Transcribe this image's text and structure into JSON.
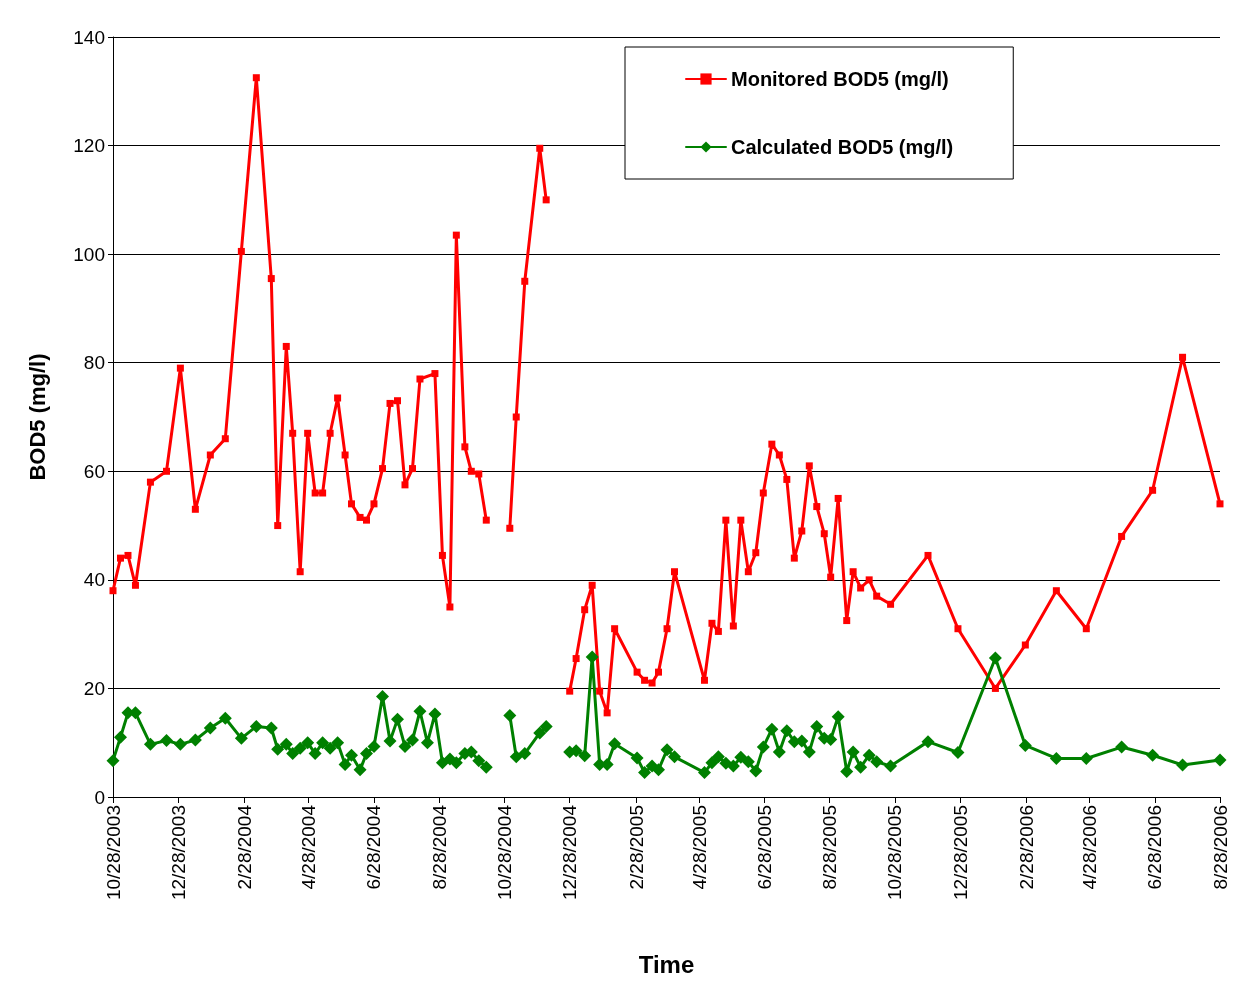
{
  "chart_data": {
    "type": "line",
    "xlabel": "Time",
    "ylabel": "BOD5 (mg/l)",
    "xlim": [
      "2003-10-28",
      "2006-08-28"
    ],
    "xticks": [
      {
        "value": "2003-10-28",
        "label": "10/28/2003"
      },
      {
        "value": "2003-12-28",
        "label": "12/28/2003"
      },
      {
        "value": "2004-02-28",
        "label": "2/28/2004"
      },
      {
        "value": "2004-04-28",
        "label": "4/28/2004"
      },
      {
        "value": "2004-06-28",
        "label": "6/28/2004"
      },
      {
        "value": "2004-08-28",
        "label": "8/28/2004"
      },
      {
        "value": "2004-10-28",
        "label": "10/28/2004"
      },
      {
        "value": "2004-12-28",
        "label": "12/28/2004"
      },
      {
        "value": "2005-02-28",
        "label": "2/28/2005"
      },
      {
        "value": "2005-04-28",
        "label": "4/28/2005"
      },
      {
        "value": "2005-06-28",
        "label": "6/28/2005"
      },
      {
        "value": "2005-08-28",
        "label": "8/28/2005"
      },
      {
        "value": "2005-10-28",
        "label": "10/28/2005"
      },
      {
        "value": "2005-12-28",
        "label": "12/28/2005"
      },
      {
        "value": "2006-02-28",
        "label": "2/28/2006"
      },
      {
        "value": "2006-04-28",
        "label": "4/28/2006"
      },
      {
        "value": "2006-06-28",
        "label": "6/28/2006"
      },
      {
        "value": "2006-08-28",
        "label": "8/28/2006"
      }
    ],
    "ylim": [
      0,
      140
    ],
    "yticks": [
      0,
      20,
      40,
      60,
      80,
      100,
      120,
      140
    ],
    "grid": "y",
    "legend": "top right",
    "line_style": "solid",
    "series": [
      {
        "name": "Monitored BOD5 (mg/l)",
        "color": "#ff0000",
        "marker": "square",
        "x": [
          "2003-10-28",
          "2003-11-04",
          "2003-11-11",
          "2003-11-18",
          "2003-12-02",
          "2003-12-17",
          "2003-12-30",
          "2004-01-13",
          "2004-01-27",
          "2004-02-10",
          "2004-02-25",
          "2004-03-10",
          "2004-03-24",
          "2004-03-30",
          "2004-04-07",
          "2004-04-13",
          "2004-04-20",
          "2004-04-27",
          "2004-05-04",
          "2004-05-11",
          "2004-05-18",
          "2004-05-25",
          "2004-06-01",
          "2004-06-07",
          "2004-06-15",
          "2004-06-21",
          "2004-06-28",
          "2004-07-06",
          "2004-07-13",
          "2004-07-20",
          "2004-07-27",
          "2004-08-03",
          "2004-08-10",
          "2004-08-24",
          "2004-08-31",
          "2004-09-07",
          "2004-09-13",
          "2004-09-21",
          "2004-09-27",
          "2004-10-04",
          "2004-10-11",
          "2004-10-20",
          "2004-11-02",
          "2004-11-08",
          "2004-11-16",
          "2004-11-30",
          "2004-12-06",
          "2004-12-16",
          "2004-12-28",
          "2005-01-03",
          "2005-01-11",
          "2005-01-18",
          "2005-01-25",
          "2005-02-01",
          "2005-02-08",
          "2005-03-01",
          "2005-03-08",
          "2005-03-15",
          "2005-03-21",
          "2005-03-29",
          "2005-04-05",
          "2005-05-03",
          "2005-05-10",
          "2005-05-16",
          "2005-05-23",
          "2005-05-30",
          "2005-06-06",
          "2005-06-13",
          "2005-06-20",
          "2005-06-27",
          "2005-07-05",
          "2005-07-12",
          "2005-07-19",
          "2005-07-26",
          "2005-08-02",
          "2005-08-09",
          "2005-08-16",
          "2005-08-23",
          "2005-08-29",
          "2005-09-05",
          "2005-09-13",
          "2005-09-19",
          "2005-09-26",
          "2005-10-04",
          "2005-10-11",
          "2005-10-24",
          "2005-11-28",
          "2005-12-26",
          "2006-01-30",
          "2006-02-27",
          "2006-03-28",
          "2006-04-25",
          "2006-05-28",
          "2006-06-26",
          "2006-07-24",
          "2006-08-28"
        ],
        "values": [
          38,
          44,
          44.5,
          39,
          58,
          60,
          79,
          53,
          63,
          66,
          100.5,
          132.5,
          95.5,
          50,
          83,
          67,
          41.5,
          67,
          56,
          56,
          67,
          73.5,
          63,
          54,
          51.5,
          51,
          54,
          60.5,
          72.5,
          73,
          57.5,
          60.5,
          77,
          78,
          44.5,
          35,
          103.5,
          64.5,
          60,
          59.5,
          51,
          null,
          49.5,
          70,
          95,
          119.5,
          110,
          null,
          19.5,
          25.5,
          34.5,
          39,
          19.5,
          15.5,
          31,
          23,
          21.5,
          21,
          23,
          31,
          41.5,
          21.5,
          32,
          30.5,
          51,
          31.5,
          51,
          41.5,
          45,
          56,
          65,
          63,
          58.5,
          44,
          49,
          61,
          53.5,
          48.5,
          40.5,
          55,
          32.5,
          41.5,
          38.5,
          40,
          37,
          35.5,
          44.5,
          31,
          20,
          28,
          38,
          31,
          48,
          56.5,
          81,
          54
        ]
      },
      {
        "name": "Calculated BOD5 (mg/l)",
        "color": "#008000",
        "marker": "diamond",
        "x": [
          "2003-10-28",
          "2003-11-04",
          "2003-11-11",
          "2003-11-18",
          "2003-12-02",
          "2003-12-17",
          "2003-12-30",
          "2004-01-13",
          "2004-01-27",
          "2004-02-10",
          "2004-02-25",
          "2004-03-10",
          "2004-03-24",
          "2004-03-30",
          "2004-04-07",
          "2004-04-13",
          "2004-04-20",
          "2004-04-27",
          "2004-05-04",
          "2004-05-11",
          "2004-05-18",
          "2004-05-25",
          "2004-06-01",
          "2004-06-07",
          "2004-06-15",
          "2004-06-21",
          "2004-06-28",
          "2004-07-06",
          "2004-07-13",
          "2004-07-20",
          "2004-07-27",
          "2004-08-03",
          "2004-08-10",
          "2004-08-17",
          "2004-08-24",
          "2004-08-31",
          "2004-09-07",
          "2004-09-13",
          "2004-09-21",
          "2004-09-27",
          "2004-10-04",
          "2004-10-11",
          "2004-10-20",
          "2004-11-02",
          "2004-11-08",
          "2004-11-16",
          "2004-11-30",
          "2004-12-06",
          "2004-12-16",
          "2004-12-28",
          "2005-01-03",
          "2005-01-11",
          "2005-01-18",
          "2005-01-25",
          "2005-02-01",
          "2005-02-08",
          "2005-03-01",
          "2005-03-08",
          "2005-03-15",
          "2005-03-21",
          "2005-03-29",
          "2005-04-05",
          "2005-05-03",
          "2005-05-10",
          "2005-05-16",
          "2005-05-23",
          "2005-05-30",
          "2005-06-06",
          "2005-06-13",
          "2005-06-20",
          "2005-06-27",
          "2005-07-05",
          "2005-07-12",
          "2005-07-19",
          "2005-07-26",
          "2005-08-02",
          "2005-08-09",
          "2005-08-16",
          "2005-08-23",
          "2005-08-29",
          "2005-09-05",
          "2005-09-13",
          "2005-09-19",
          "2005-09-26",
          "2005-10-04",
          "2005-10-11",
          "2005-10-24",
          "2005-11-28",
          "2005-12-26",
          "2006-01-30",
          "2006-02-27",
          "2006-03-28",
          "2006-04-25",
          "2006-05-28",
          "2006-06-26",
          "2006-07-24",
          "2006-08-28"
        ],
        "values": [
          6.7,
          11,
          15.5,
          15.5,
          9.7,
          10.4,
          9.7,
          10.5,
          12.7,
          14.5,
          10.8,
          13,
          12.7,
          8.8,
          9.7,
          8,
          9,
          10,
          8,
          10,
          9,
          10,
          6,
          7.7,
          5,
          8,
          9.3,
          18.5,
          10.3,
          14.3,
          9.3,
          10.5,
          15.8,
          10,
          15.3,
          6.3,
          7,
          6.3,
          8,
          8.3,
          6.7,
          5.5,
          null,
          15,
          7.4,
          8,
          11.8,
          13,
          null,
          8.3,
          8.5,
          7.6,
          25.8,
          6,
          6,
          9.8,
          7.2,
          4.5,
          5.7,
          5,
          8.7,
          7.4,
          4.5,
          6.3,
          7.4,
          6.2,
          5.7,
          7.3,
          6.5,
          4.8,
          9.2,
          12.5,
          8.3,
          12.2,
          10.2,
          10.3,
          8.3,
          13,
          10.8,
          10.6,
          14.8,
          4.7,
          8.3,
          5.5,
          7.7,
          6.5,
          5.7,
          10.2,
          8.2,
          25.6,
          9.5,
          7.1,
          7.1,
          9.2,
          7.7,
          5.9,
          6.8
        ]
      }
    ]
  }
}
